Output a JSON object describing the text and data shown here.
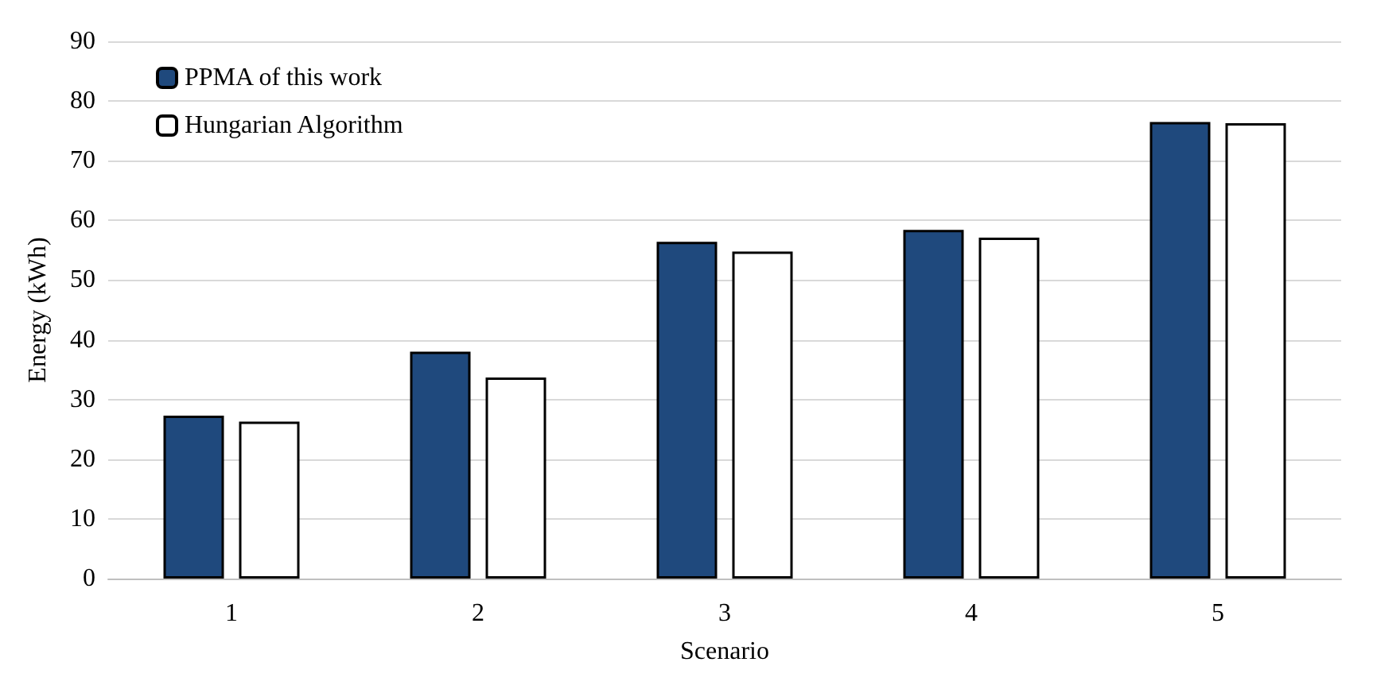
{
  "chart_data": {
    "type": "bar",
    "xlabel": "Scenario",
    "ylabel": "Energy (kWh)",
    "categories": [
      "1",
      "2",
      "3",
      "4",
      "5"
    ],
    "series": [
      {
        "name": "PPMA of this work",
        "color": "#1f497d",
        "values": [
          27.3,
          38.0,
          56.4,
          58.4,
          76.5
        ]
      },
      {
        "name": "Hungarian Algorithm",
        "color": "#ffffff",
        "values": [
          26.3,
          33.7,
          54.8,
          57.1,
          76.3
        ]
      }
    ],
    "ylim": [
      0,
      90
    ],
    "yticks": [
      0,
      10,
      20,
      30,
      40,
      50,
      60,
      70,
      80,
      90
    ],
    "grid": "y",
    "legend": "top left"
  }
}
